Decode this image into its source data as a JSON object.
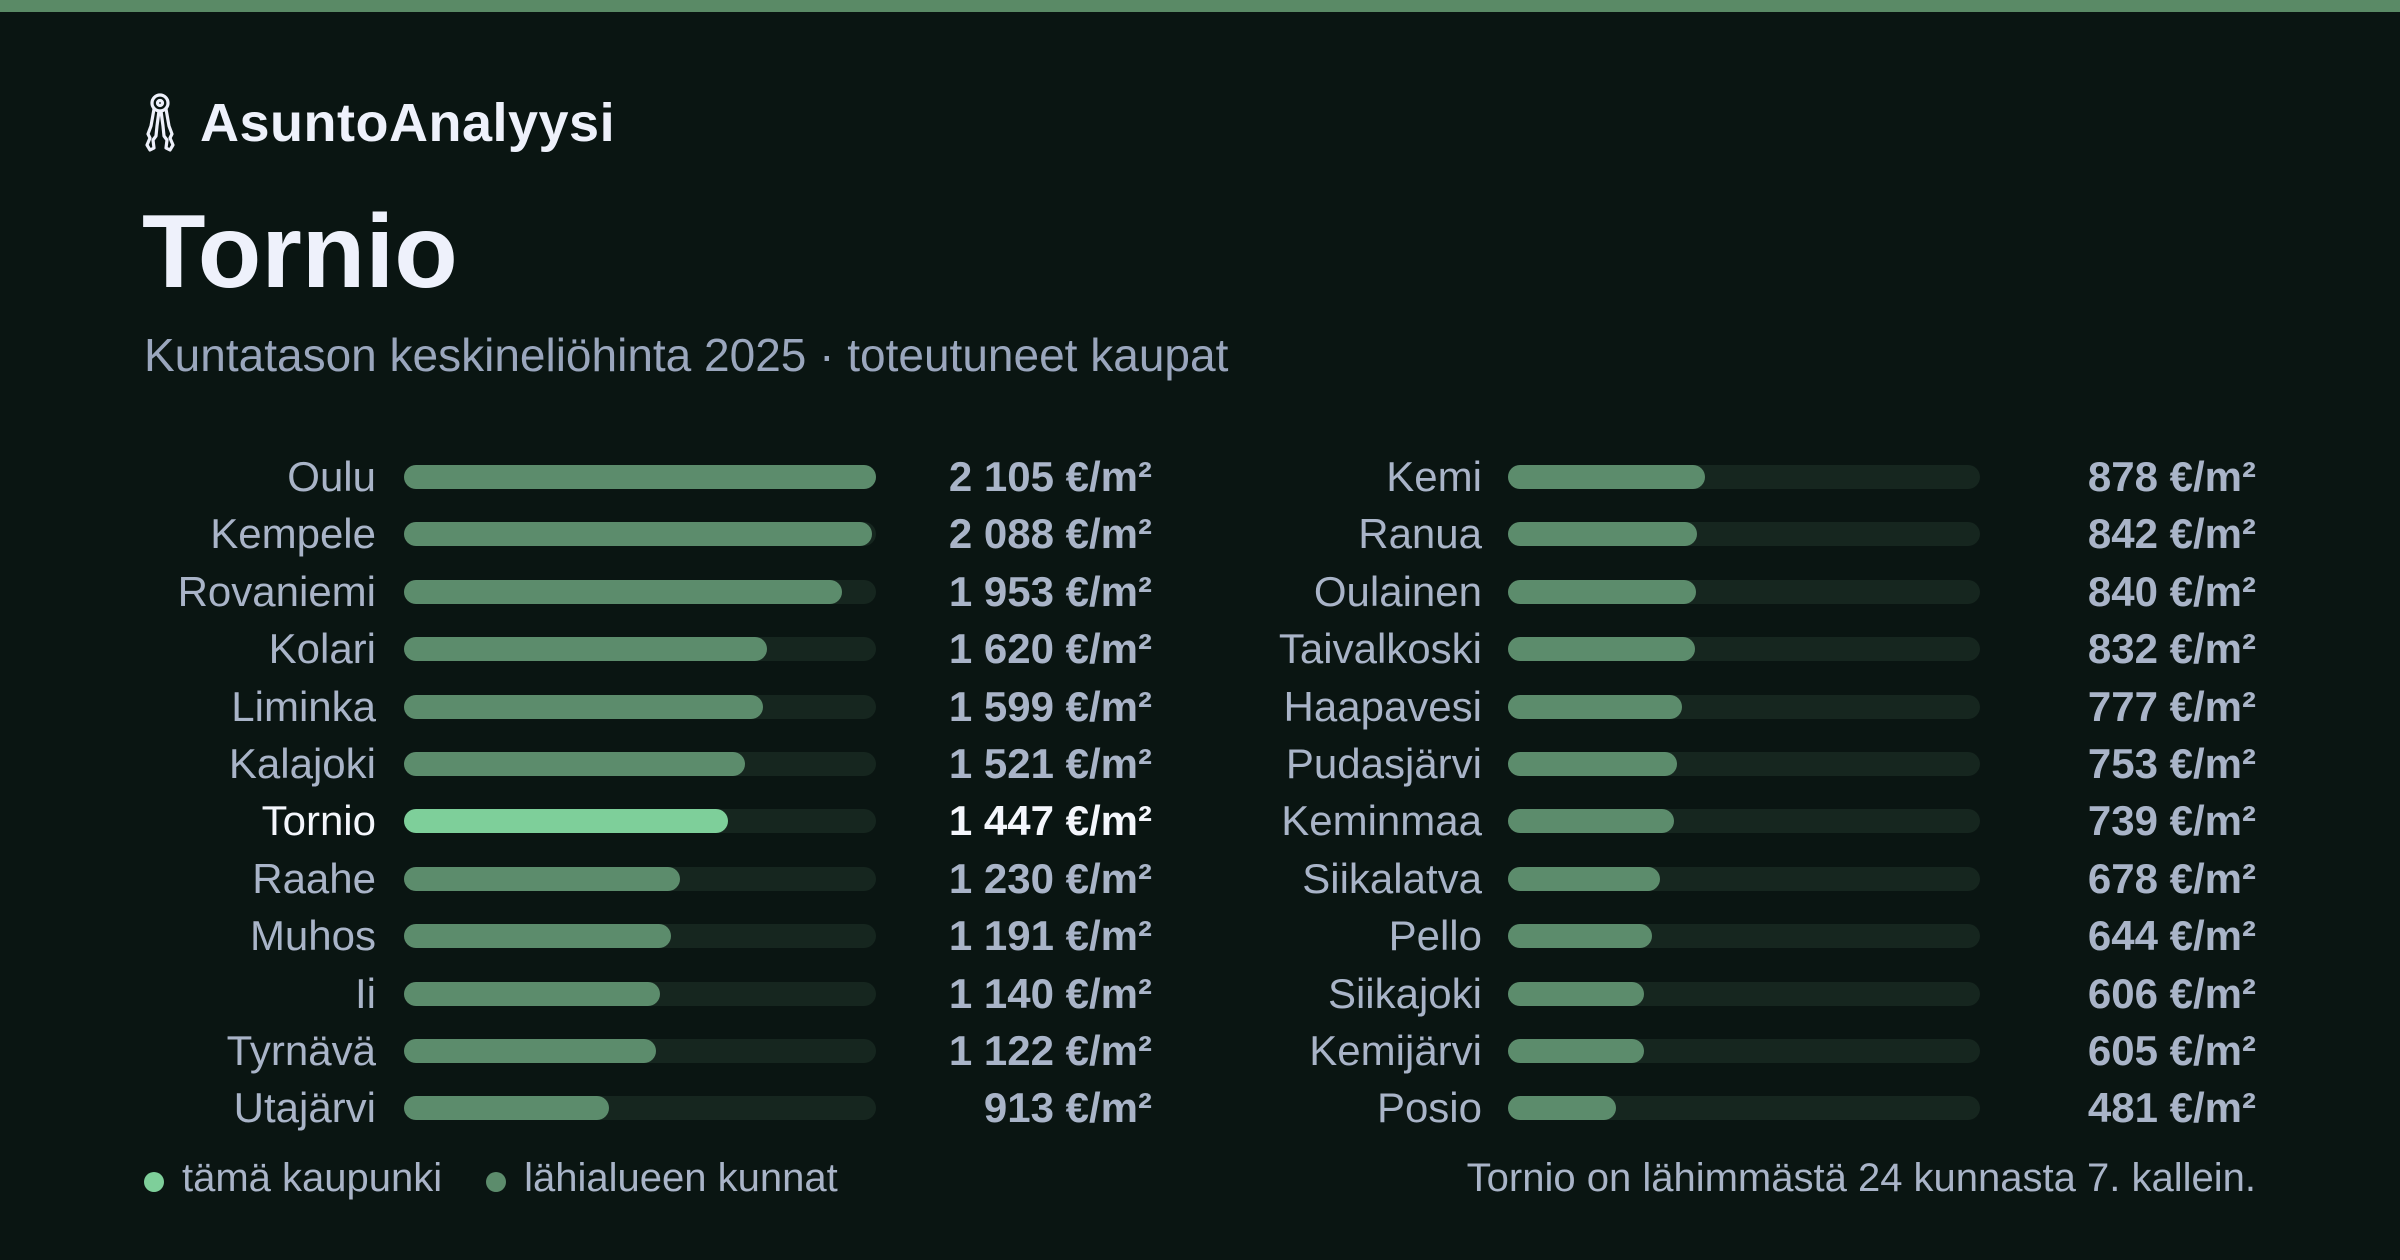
{
  "brand": {
    "name": "AsuntoAnalyysi",
    "icon": "keys-icon"
  },
  "title": "Tornio",
  "subtitle": "Kuntatason keskineliöhinta 2025 · toteutuneet kaupat",
  "legend": {
    "this_city": "tämä kaupunki",
    "nearby": "lähialueen kunnat"
  },
  "footnote": "Tornio on lähimmästä 24 kunnasta 7. kallein.",
  "colors": {
    "background": "#0a1512",
    "top_bar": "#5a8a66",
    "highlight_bar": "#7ecf9a",
    "other_bar": "#5c8c6c",
    "track": "#16261f",
    "text": "#a9b4c8",
    "title": "#eef1fb"
  },
  "chart_data": {
    "type": "bar",
    "orientation": "horizontal",
    "unit": "€/m²",
    "xlim": [
      0,
      2105
    ],
    "highlight": "Tornio",
    "categories": [
      "Oulu",
      "Kempele",
      "Rovaniemi",
      "Kolari",
      "Liminka",
      "Kalajoki",
      "Tornio",
      "Raahe",
      "Muhos",
      "Ii",
      "Tyrnävä",
      "Utajärvi",
      "Kemi",
      "Ranua",
      "Oulainen",
      "Taivalkoski",
      "Haapavesi",
      "Pudasjärvi",
      "Keminmaa",
      "Siikalatva",
      "Pello",
      "Siikajoki",
      "Kemijärvi",
      "Posio"
    ],
    "values": [
      2105,
      2088,
      1953,
      1620,
      1599,
      1521,
      1447,
      1230,
      1191,
      1140,
      1122,
      913,
      878,
      842,
      840,
      832,
      777,
      753,
      739,
      678,
      644,
      606,
      605,
      481
    ],
    "value_labels": [
      "2 105 €/m²",
      "2 088 €/m²",
      "1 953 €/m²",
      "1 620 €/m²",
      "1 599 €/m²",
      "1 521 €/m²",
      "1 447 €/m²",
      "1 230 €/m²",
      "1 191 €/m²",
      "1 140 €/m²",
      "1 122 €/m²",
      "913 €/m²",
      "878 €/m²",
      "842 €/m²",
      "840 €/m²",
      "832 €/m²",
      "777 €/m²",
      "753 €/m²",
      "739 €/m²",
      "678 €/m²",
      "644 €/m²",
      "606 €/m²",
      "605 €/m²",
      "481 €/m²"
    ]
  }
}
